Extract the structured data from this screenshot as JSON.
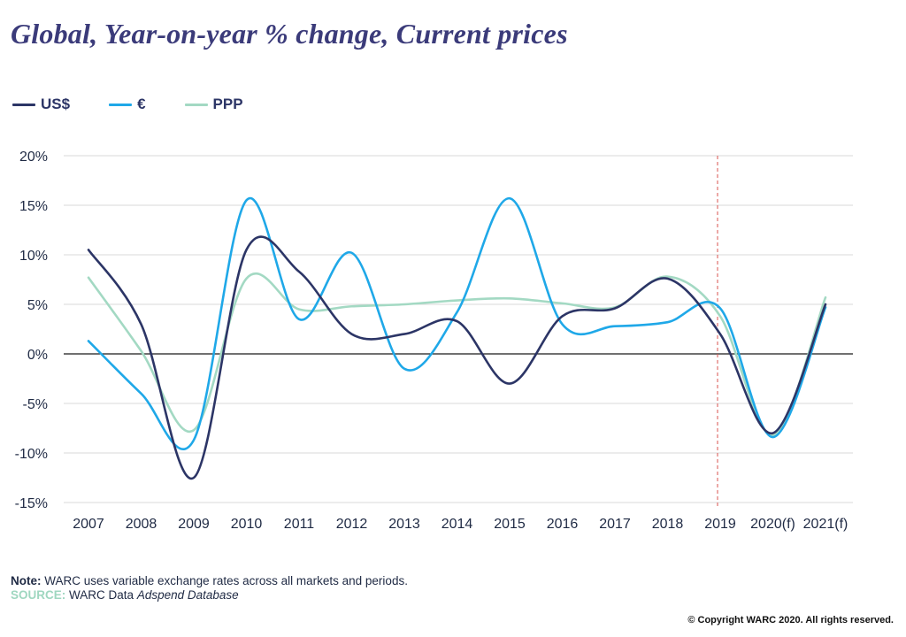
{
  "header": {
    "title": "Global, Year-on-year % change, Current prices"
  },
  "footer": {
    "note_label": "Note:",
    "note_text": "WARC uses variable exchange rates across all markets and periods.",
    "source_label": "SOURCE:",
    "source_text": "WARC Data",
    "source_db": "Adspend Database",
    "copyright": "© Copyright WARC 2020. All rights reserved."
  },
  "chart_data": {
    "type": "line",
    "title": "Global, Year-on-year % change, Current prices",
    "xlabel": "",
    "ylabel": "",
    "categories": [
      "2007",
      "2008",
      "2009",
      "2010",
      "2011",
      "2012",
      "2013",
      "2014",
      "2015",
      "2016",
      "2017",
      "2018",
      "2019",
      "2020(f)",
      "2021(f)"
    ],
    "y_ticks": [
      20,
      15,
      10,
      5,
      0,
      -5,
      -10,
      -15
    ],
    "y_tick_labels": [
      "20%",
      "15%",
      "10%",
      "5%",
      "0%",
      "-5%",
      "-10%",
      "-15%"
    ],
    "ylim": [
      -15,
      20
    ],
    "grid": true,
    "legend_position": "top-left",
    "forecast_marker_after": "2019",
    "series": [
      {
        "name": "US$",
        "color": "#2c3566",
        "values": [
          10.5,
          3.0,
          -12.5,
          10.5,
          8.3,
          2.0,
          2.0,
          3.3,
          -3.0,
          3.8,
          4.6,
          7.6,
          2.0,
          -8.0,
          5.0
        ]
      },
      {
        "name": "€",
        "color": "#1fa8e8",
        "values": [
          1.3,
          -4.0,
          -8.7,
          15.5,
          3.5,
          10.2,
          -1.5,
          4.2,
          15.7,
          3.0,
          2.8,
          3.2,
          4.6,
          -8.4,
          4.7
        ]
      },
      {
        "name": "PPP",
        "color": "#a3d9c3",
        "values": [
          7.7,
          0.3,
          -7.7,
          7.6,
          4.5,
          4.8,
          5.0,
          5.4,
          5.6,
          5.1,
          4.7,
          7.8,
          3.8,
          -8.2,
          5.7
        ]
      }
    ]
  }
}
